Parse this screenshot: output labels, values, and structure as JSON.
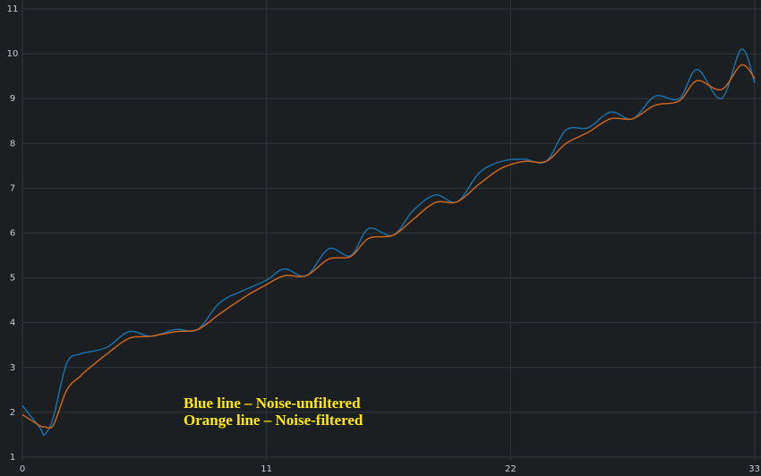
{
  "chart_data": {
    "type": "line",
    "annotations": [
      "Blue line – Noise-unfiltered",
      "Orange line – Noise-filtered"
    ],
    "x": [
      0,
      0.8,
      1.0,
      1.4,
      2,
      2.6,
      2.8,
      3.8,
      4.8,
      5.8,
      6.9,
      7.9,
      8.9,
      10.1,
      11,
      11.8,
      12.8,
      13.8,
      14.8,
      15.6,
      16.7,
      17.6,
      18.6,
      19.6,
      20.6,
      21.6,
      22.6,
      23.6,
      24.5,
      25.5,
      26.5,
      27.5,
      28.5,
      29.6,
      30.4,
      31.5,
      32.4,
      33
    ],
    "series": [
      {
        "color": "#1a6fa8",
        "values": [
          2.15,
          1.65,
          1.5,
          1.9,
          3.1,
          3.3,
          3.33,
          3.45,
          3.8,
          3.7,
          3.85,
          3.85,
          4.45,
          4.75,
          4.95,
          5.2,
          5.05,
          5.65,
          5.5,
          6.1,
          5.95,
          6.5,
          6.85,
          6.7,
          7.35,
          7.6,
          7.65,
          7.6,
          8.3,
          8.35,
          8.7,
          8.55,
          9.05,
          9.0,
          9.65,
          9.0,
          10.1,
          9.35
        ]
      },
      {
        "color": "#c8641e",
        "values": [
          1.95,
          1.7,
          1.68,
          1.72,
          2.5,
          2.8,
          2.9,
          3.3,
          3.65,
          3.7,
          3.8,
          3.85,
          4.2,
          4.6,
          4.85,
          5.05,
          5.05,
          5.42,
          5.48,
          5.88,
          5.95,
          6.3,
          6.68,
          6.7,
          7.1,
          7.45,
          7.6,
          7.6,
          8.0,
          8.25,
          8.55,
          8.55,
          8.85,
          8.95,
          9.4,
          9.2,
          9.75,
          9.45
        ]
      }
    ],
    "xlim": [
      0,
      33
    ],
    "xticks": [
      0,
      11,
      22,
      33
    ],
    "ylim": [
      1,
      11
    ],
    "yticks": [
      1,
      2,
      3,
      4,
      5,
      6,
      7,
      8,
      9,
      10,
      11
    ],
    "grid": true
  }
}
